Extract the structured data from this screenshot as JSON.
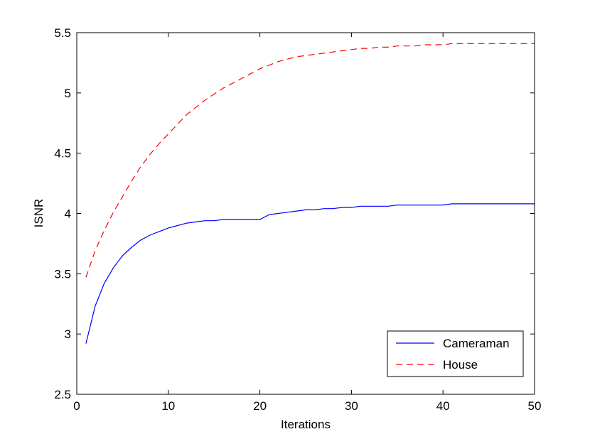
{
  "chart_data": {
    "type": "line",
    "title": "",
    "xlabel": "Iterations",
    "ylabel": "ISNR",
    "xlim": [
      0,
      50
    ],
    "ylim": [
      2.5,
      5.5
    ],
    "xticks": [
      0,
      10,
      20,
      30,
      40,
      50
    ],
    "xtick_labels": [
      "0",
      "10",
      "20",
      "30",
      "40",
      "50"
    ],
    "yticks": [
      2.5,
      3,
      3.5,
      4,
      4.5,
      5,
      5.5
    ],
    "ytick_labels": [
      "2.5",
      "3",
      "3.5",
      "4",
      "4.5",
      "5",
      "5.5"
    ],
    "grid": false,
    "legend_position": "bottom-right",
    "series": [
      {
        "name": "Cameraman",
        "color": "#0000ff",
        "dash": "solid",
        "x": [
          1,
          2,
          3,
          4,
          5,
          6,
          7,
          8,
          9,
          10,
          11,
          12,
          13,
          14,
          15,
          16,
          17,
          18,
          19,
          20,
          21,
          22,
          23,
          24,
          25,
          26,
          27,
          28,
          29,
          30,
          31,
          32,
          33,
          34,
          35,
          36,
          37,
          38,
          39,
          40,
          41,
          42,
          43,
          44,
          45,
          46,
          47,
          48,
          49,
          50
        ],
        "values": [
          2.92,
          3.23,
          3.42,
          3.55,
          3.65,
          3.72,
          3.78,
          3.82,
          3.85,
          3.88,
          3.9,
          3.92,
          3.93,
          3.94,
          3.94,
          3.95,
          3.95,
          3.95,
          3.95,
          3.95,
          3.99,
          4.0,
          4.01,
          4.02,
          4.03,
          4.03,
          4.04,
          4.04,
          4.05,
          4.05,
          4.06,
          4.06,
          4.06,
          4.06,
          4.07,
          4.07,
          4.07,
          4.07,
          4.07,
          4.07,
          4.08,
          4.08,
          4.08,
          4.08,
          4.08,
          4.08,
          4.08,
          4.08,
          4.08,
          4.08
        ]
      },
      {
        "name": "House",
        "color": "#ff0000",
        "dash": "dashed",
        "x": [
          1,
          2,
          3,
          4,
          5,
          6,
          7,
          8,
          9,
          10,
          11,
          12,
          13,
          14,
          15,
          16,
          17,
          18,
          19,
          20,
          21,
          22,
          23,
          24,
          25,
          26,
          27,
          28,
          29,
          30,
          31,
          32,
          33,
          34,
          35,
          36,
          37,
          38,
          39,
          40,
          41,
          42,
          43,
          44,
          45,
          46,
          47,
          48,
          49,
          50
        ],
        "values": [
          3.47,
          3.69,
          3.86,
          4.01,
          4.14,
          4.27,
          4.39,
          4.49,
          4.58,
          4.66,
          4.74,
          4.82,
          4.88,
          4.94,
          4.99,
          5.04,
          5.08,
          5.12,
          5.16,
          5.2,
          5.23,
          5.26,
          5.28,
          5.3,
          5.31,
          5.32,
          5.33,
          5.34,
          5.35,
          5.36,
          5.37,
          5.37,
          5.38,
          5.38,
          5.39,
          5.39,
          5.39,
          5.4,
          5.4,
          5.4,
          5.41,
          5.41,
          5.41,
          5.41,
          5.41,
          5.41,
          5.41,
          5.41,
          5.41,
          5.41
        ]
      }
    ]
  }
}
